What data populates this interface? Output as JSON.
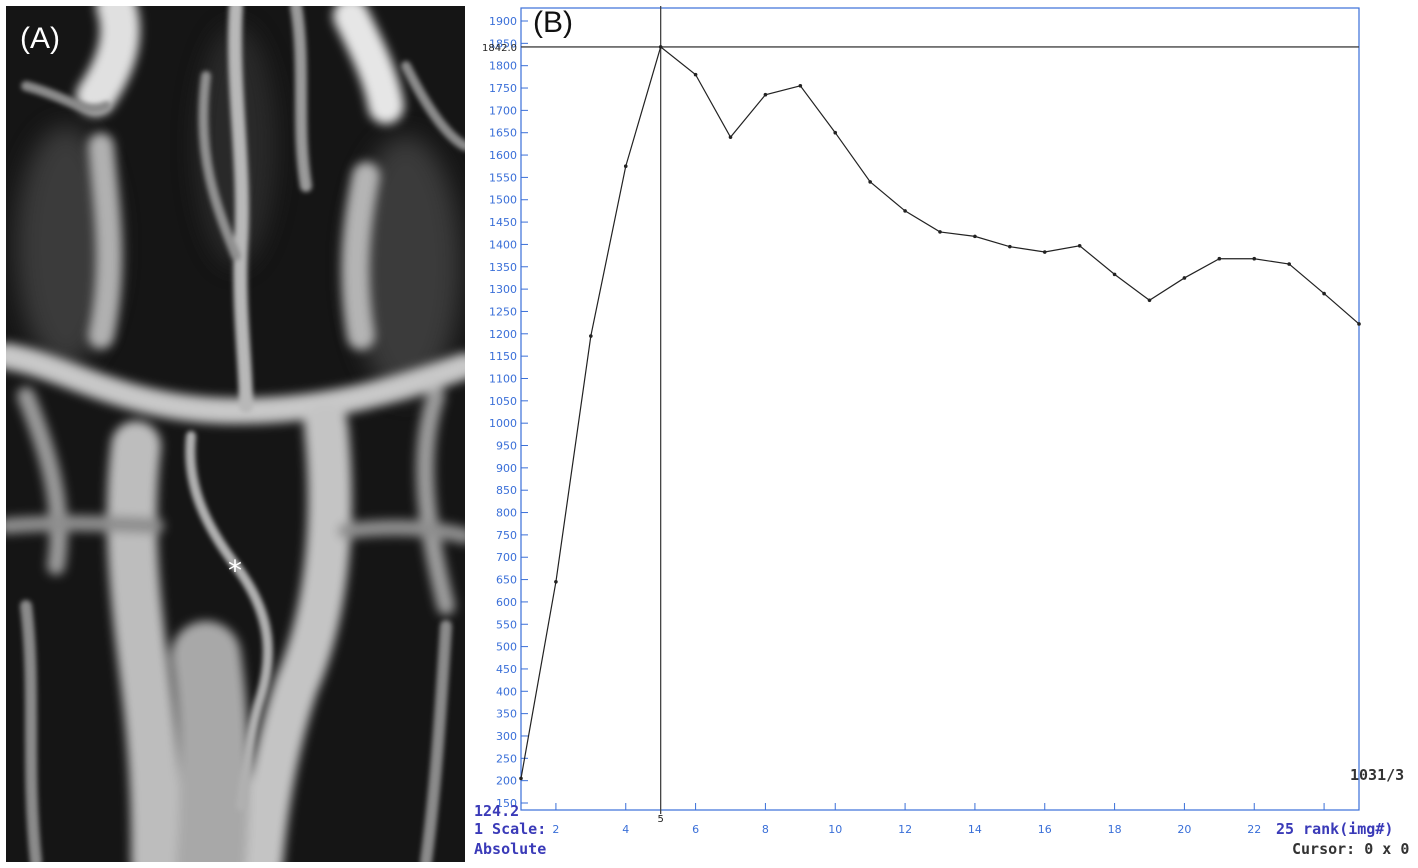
{
  "panel_a": {
    "label": "(A)",
    "marker": "*"
  },
  "panel_b": {
    "label": "(B)",
    "cursor_value_label": "1842.0",
    "cursor_x_label": "5",
    "corner_value": "1031/3",
    "bottom_value": "124.2",
    "scale_text": "1 Scale:",
    "scale_mode": "Absolute",
    "rank_text": "25 rank(img#)",
    "cursor_text": "Cursor: 0 x 0",
    "colors": {
      "axis": "#3a6fd8",
      "text": "#3a3ab8",
      "line": "#222222"
    }
  },
  "chart_data": {
    "type": "line",
    "x": [
      1,
      2,
      3,
      4,
      5,
      6,
      7,
      8,
      9,
      10,
      11,
      12,
      13,
      14,
      15,
      16,
      17,
      18,
      19,
      20,
      21,
      22,
      23,
      24,
      25
    ],
    "series": [
      {
        "values": [
          205,
          645,
          1195,
          1575,
          1842,
          1780,
          1640,
          1735,
          1755,
          1650,
          1540,
          1475,
          1428,
          1418,
          1395,
          1383,
          1397,
          1333,
          1275,
          1325,
          1368,
          1368,
          1356,
          1290,
          1222
        ]
      }
    ],
    "xticks": [
      2,
      4,
      6,
      8,
      10,
      12,
      14,
      16,
      18,
      20,
      22
    ],
    "yticks": [
      150,
      200,
      250,
      300,
      350,
      400,
      450,
      500,
      550,
      600,
      650,
      700,
      750,
      800,
      850,
      900,
      950,
      1000,
      1050,
      1100,
      1150,
      1200,
      1250,
      1300,
      1350,
      1400,
      1450,
      1500,
      1550,
      1600,
      1650,
      1700,
      1750,
      1800,
      1850,
      1900
    ],
    "xlim": [
      1,
      25
    ],
    "ylim": [
      130,
      1930
    ],
    "cursor": {
      "x": 5,
      "y": 1842
    },
    "xlabel": "",
    "ylabel": ""
  }
}
